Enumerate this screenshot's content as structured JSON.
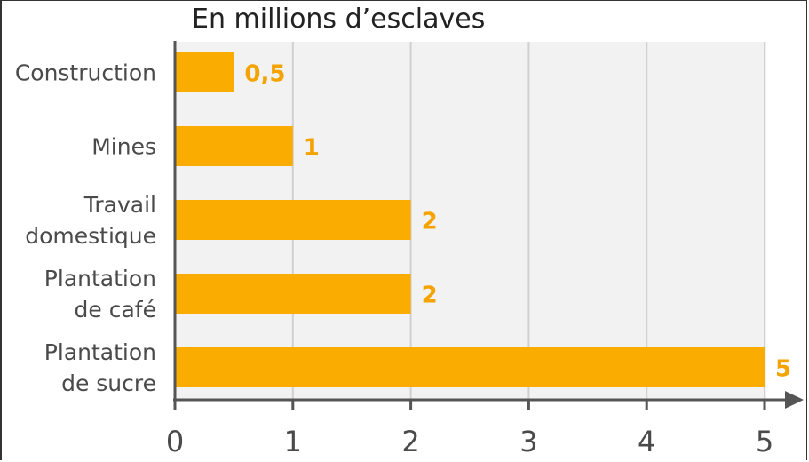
{
  "chart_data": {
    "type": "bar",
    "orientation": "horizontal",
    "title": "En millions d’esclaves",
    "categories": [
      [
        "Construction"
      ],
      [
        "Mines"
      ],
      [
        "Travail",
        "domestique"
      ],
      [
        "Plantation",
        "de café"
      ],
      [
        "Plantation",
        "de sucre"
      ]
    ],
    "values": [
      0.5,
      1,
      2,
      2,
      5
    ],
    "value_labels": [
      "0,5",
      "1",
      "2",
      "2",
      "5"
    ],
    "xticks": [
      0,
      1,
      2,
      3,
      4,
      5
    ],
    "xlim": [
      0,
      5
    ],
    "grid": true,
    "colors": {
      "bar": "#fbac00",
      "label": "#f5a300",
      "plot_bg": "#f2f2f2",
      "grid": "#d0d0d0",
      "axis": "#555555"
    }
  }
}
